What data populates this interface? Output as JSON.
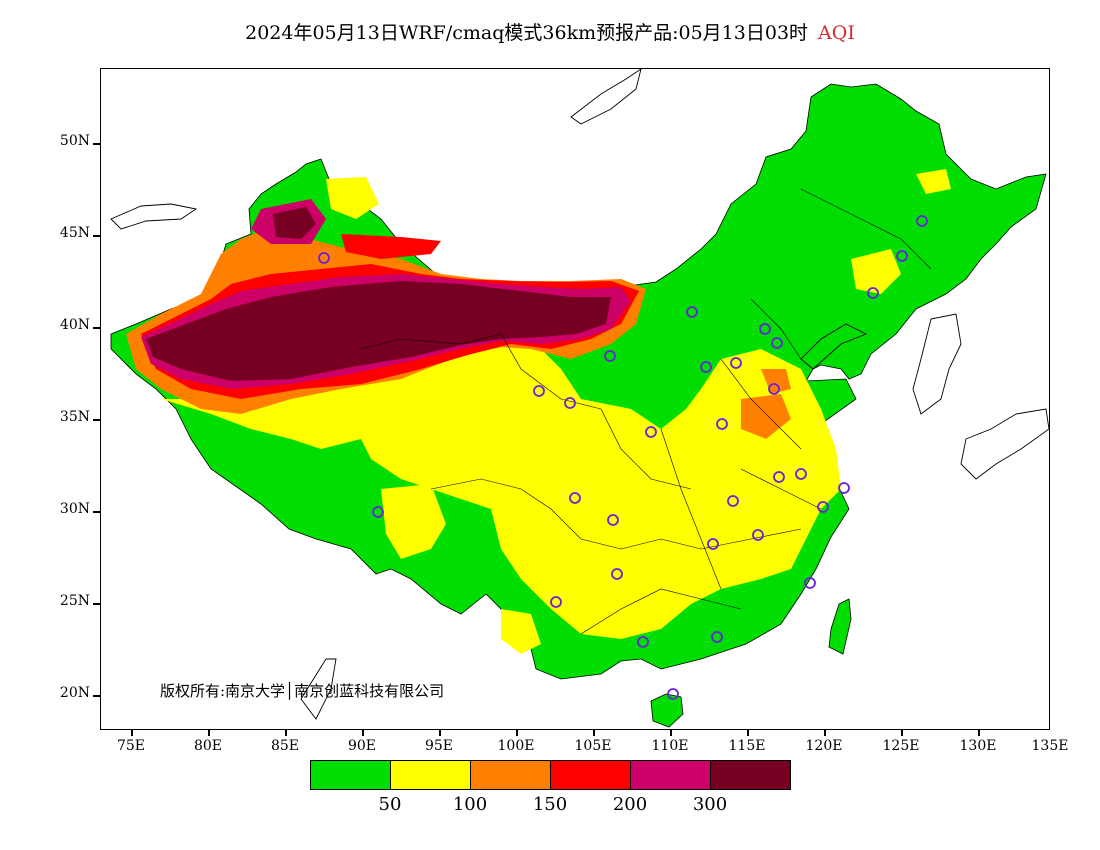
{
  "title": {
    "main": "2024年05月13日WRF/cmaq模式36km预报产品:05月13日03时",
    "variable": "AQI"
  },
  "axes": {
    "lat_labels": [
      "50N",
      "45N",
      "40N",
      "35N",
      "30N",
      "25N",
      "20N"
    ],
    "lon_labels": [
      "75E",
      "80E",
      "85E",
      "90E",
      "95E",
      "100E",
      "105E",
      "110E",
      "115E",
      "120E",
      "125E",
      "130E",
      "135E"
    ]
  },
  "copyright": "版权所有:南京大学│南京创蓝科技有限公司",
  "legend": {
    "colors": [
      "#00dd00",
      "#ffff00",
      "#ff8000",
      "#ff0000",
      "#cc0066",
      "#770022"
    ],
    "labels": [
      "50",
      "100",
      "150",
      "200",
      "300"
    ]
  },
  "stations": [
    "45.8N 126.7E",
    "43.9N 125.3E",
    "41.8N 123.4E",
    "39.9N 116.4E",
    "39.1N 117.2E",
    "38.0N 114.5E",
    "37.9N 112.5E",
    "36.7N 117.0E",
    "34.8N 113.7E",
    "34.3N 108.9E",
    "36.1N 103.8E",
    "36.6N 101.8E",
    "38.5N 106.3E",
    "40.8N 111.7E",
    "43.8N 87.6E",
    "30.6N 104.1E",
    "29.6N 106.5E",
    "30.6N 114.3E",
    "28.2N 112.9E",
    "28.7N 115.9E",
    "31.9N 117.3E",
    "32.1N 118.8E",
    "31.2N 121.5E",
    "30.3N 120.2E",
    "26.1N 119.3E",
    "26.6N 106.7E",
    "25.0N 102.7E",
    "22.8N 108.4E",
    "23.1N 113.3E",
    "20.0N 110.3E",
    "29.7N 91.1E"
  ]
}
